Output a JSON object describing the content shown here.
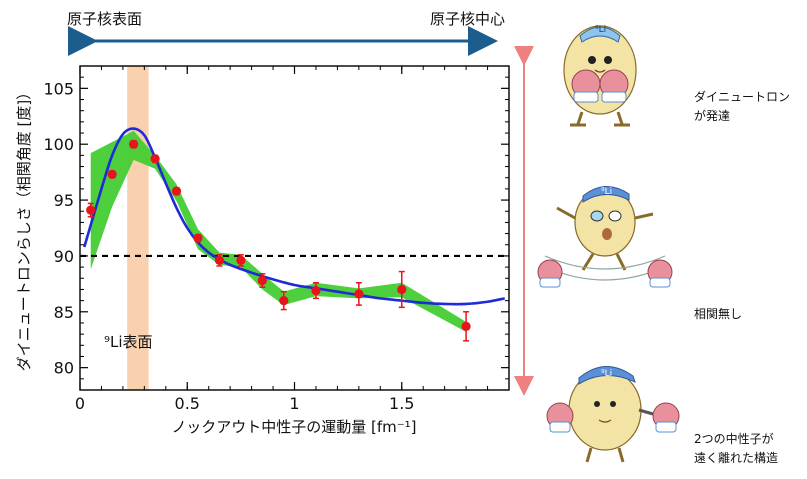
{
  "header": {
    "left_label": "原子核表面",
    "right_label": "原子核中心"
  },
  "chart_data": {
    "type": "scatter",
    "xlabel": "ノックアウト中性子の運動量 [fm⁻¹]",
    "ylabel": "ダイニュートロンらしさ（相関角度 [度]）",
    "xlim": [
      0,
      2.0
    ],
    "ylim": [
      78,
      107
    ],
    "x_ticks": [
      {
        "value": 0,
        "label": "0"
      },
      {
        "value": 0.5,
        "label": "0.5"
      },
      {
        "value": 1.0,
        "label": "1"
      },
      {
        "value": 1.5,
        "label": "1.5"
      }
    ],
    "y_ticks": [
      {
        "value": 80,
        "label": "80"
      },
      {
        "value": 85,
        "label": "85"
      },
      {
        "value": 90,
        "label": "90"
      },
      {
        "value": 95,
        "label": "95"
      },
      {
        "value": 100,
        "label": "100"
      },
      {
        "value": 105,
        "label": "105"
      }
    ],
    "reference_line": {
      "y": 90,
      "style": "dashed"
    },
    "surface_band": {
      "x_min": 0.22,
      "x_max": 0.32,
      "label": "⁹Li表面",
      "color": "#f8c9a0"
    },
    "data_points": {
      "color": "#e8141b",
      "points": [
        {
          "x": 0.05,
          "y": 94.1,
          "err": 0.6
        },
        {
          "x": 0.15,
          "y": 97.3,
          "err": 0.3
        },
        {
          "x": 0.25,
          "y": 100.0,
          "err": 0.3
        },
        {
          "x": 0.35,
          "y": 98.7,
          "err": 0.3
        },
        {
          "x": 0.45,
          "y": 95.8,
          "err": 0.3
        },
        {
          "x": 0.55,
          "y": 91.6,
          "err": 0.3
        },
        {
          "x": 0.65,
          "y": 89.6,
          "err": 0.5
        },
        {
          "x": 0.75,
          "y": 89.6,
          "err": 0.5
        },
        {
          "x": 0.85,
          "y": 87.8,
          "err": 0.6
        },
        {
          "x": 0.95,
          "y": 86.0,
          "err": 0.8
        },
        {
          "x": 1.1,
          "y": 86.9,
          "err": 0.7
        },
        {
          "x": 1.3,
          "y": 86.6,
          "err": 1.0
        },
        {
          "x": 1.5,
          "y": 87.0,
          "err": 1.6
        },
        {
          "x": 1.8,
          "y": 83.7,
          "err": 1.3
        }
      ]
    },
    "theory_curve": {
      "color": "#1f2bd6",
      "x": [
        0.02,
        0.1,
        0.15,
        0.2,
        0.25,
        0.3,
        0.35,
        0.4,
        0.45,
        0.5,
        0.55,
        0.6,
        0.65,
        0.7,
        0.8,
        0.9,
        1.0,
        1.1,
        1.2,
        1.3,
        1.4,
        1.5,
        1.6,
        1.7,
        1.8,
        1.9,
        1.98
      ],
      "y": [
        90.8,
        96.0,
        99.0,
        100.9,
        101.4,
        100.8,
        98.8,
        96.5,
        94.3,
        92.5,
        91.2,
        90.3,
        89.7,
        89.2,
        88.5,
        87.9,
        87.4,
        87.1,
        86.8,
        86.5,
        86.2,
        86.0,
        85.8,
        85.7,
        85.7,
        85.9,
        86.2
      ]
    },
    "uncertainty_band": {
      "color": "#44cc33",
      "x": [
        0.05,
        0.15,
        0.25,
        0.35,
        0.45,
        0.55,
        0.65,
        0.75,
        0.85,
        0.95,
        1.1,
        1.3,
        1.5,
        1.8
      ],
      "upper": [
        99.2,
        100.2,
        101.2,
        99.0,
        96.4,
        92.4,
        90.3,
        90.1,
        88.4,
        86.8,
        87.6,
        87.1,
        87.6,
        84.1
      ],
      "lower": [
        88.8,
        94.4,
        98.6,
        97.8,
        94.9,
        90.6,
        89.2,
        89.0,
        87.0,
        85.6,
        86.4,
        86.2,
        86.3,
        83.2
      ]
    }
  },
  "side_labels": {
    "top": [
      "ダイニュートロン",
      "が発達"
    ],
    "middle": "相関無し",
    "bottom": [
      "2つの中性子が",
      "遠く離れた構造"
    ]
  },
  "colors": {
    "axis_arrow": "#1b5e8e",
    "vertical_arrow": "#f08080",
    "illustration_body": "#f3e4a6",
    "illustration_cap": "#5b8fd6",
    "illustration_neutron": "#e8909c"
  }
}
